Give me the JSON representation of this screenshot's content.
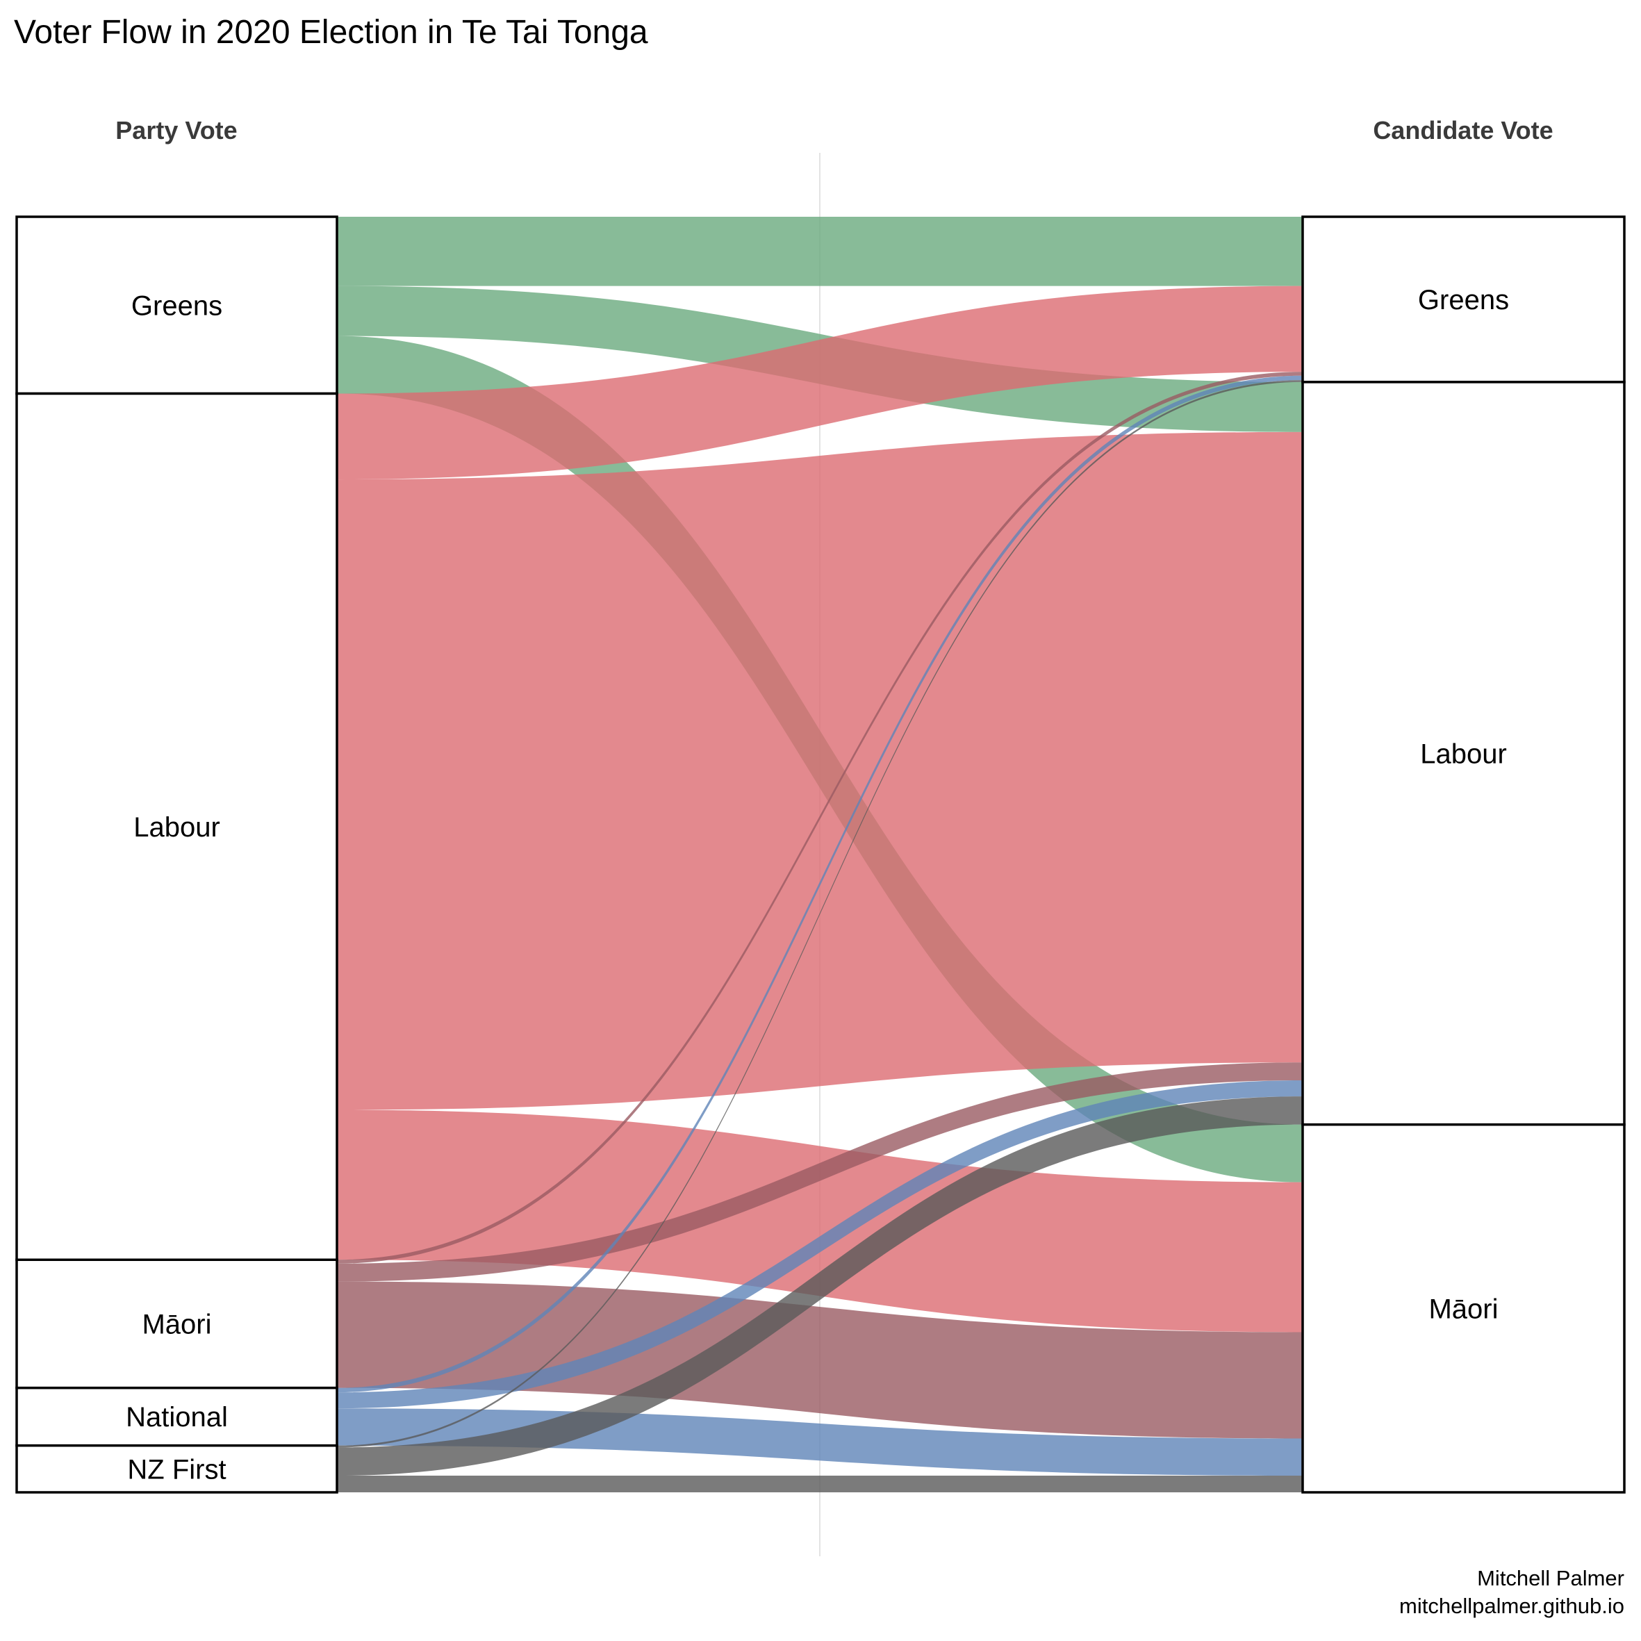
{
  "chart_data": {
    "type": "alluvial",
    "title": "Voter Flow in 2020 Election in Te Tai Tonga",
    "axes": [
      {
        "label": "Party Vote",
        "nodes": [
          "Greens",
          "Labour",
          "Māori",
          "National",
          "NZ First"
        ]
      },
      {
        "label": "Candidate Vote",
        "nodes": [
          "Greens",
          "Labour",
          "Māori"
        ]
      }
    ],
    "colors": {
      "Greens": "#6aaa7e",
      "Labour": "#dc6b72",
      "Māori": "#9a5b63",
      "National": "#5f84b8",
      "NZ First": "#5a5a5a"
    },
    "value_unit": "share of total (%)",
    "flows": [
      {
        "from": "Greens",
        "to": "Greens",
        "value": 5.4
      },
      {
        "from": "Greens",
        "to": "Labour",
        "value": 3.9
      },
      {
        "from": "Greens",
        "to": "Māori",
        "value": 4.5
      },
      {
        "from": "Labour",
        "to": "Greens",
        "value": 6.7
      },
      {
        "from": "Labour",
        "to": "Labour",
        "value": 49.2
      },
      {
        "from": "Labour",
        "to": "Māori",
        "value": 11.7
      },
      {
        "from": "Māori",
        "to": "Greens",
        "value": 0.3
      },
      {
        "from": "Māori",
        "to": "Labour",
        "value": 1.4
      },
      {
        "from": "Māori",
        "to": "Māori",
        "value": 8.3
      },
      {
        "from": "National",
        "to": "Greens",
        "value": 0.35
      },
      {
        "from": "National",
        "to": "Labour",
        "value": 1.25
      },
      {
        "from": "National",
        "to": "Māori",
        "value": 2.9
      },
      {
        "from": "NZ First",
        "to": "Greens",
        "value": 0.15
      },
      {
        "from": "NZ First",
        "to": "Labour",
        "value": 2.2
      },
      {
        "from": "NZ First",
        "to": "Māori",
        "value": 1.3
      }
    ],
    "caption": [
      "Mitchell Palmer",
      "mitchellpalmer.github.io"
    ]
  }
}
